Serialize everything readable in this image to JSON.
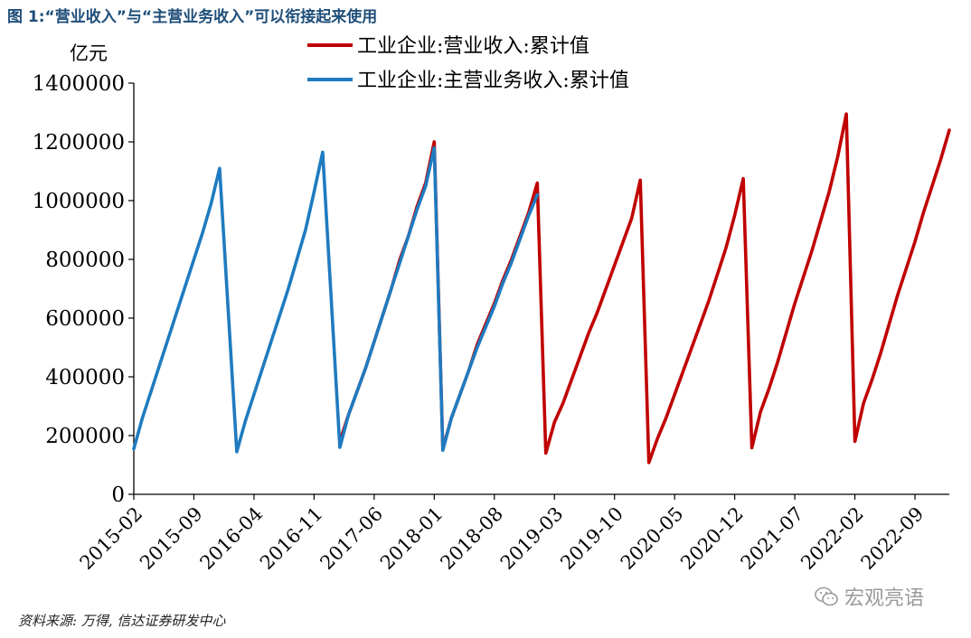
{
  "figure": {
    "title": "图 1:“营业收入”与“主营业务收入”可以衔接起来使用",
    "source": "资料来源: 万得, 信达证券研发中心",
    "watermark": "宏观亮语"
  },
  "colors": {
    "red": "#c00000",
    "blue": "#1f7bc0",
    "title": "#1f4e79"
  },
  "chart_data": {
    "type": "line",
    "title": "",
    "xlabel": "",
    "ylabel": "亿元",
    "ylim": [
      0,
      1400000
    ],
    "yticks": [
      0,
      200000,
      400000,
      600000,
      800000,
      1000000,
      1200000,
      1400000
    ],
    "ytick_labels": [
      "0",
      "200000",
      "400000",
      "600000",
      "800000",
      "1000000",
      "1200000",
      "1400000"
    ],
    "xlim": [
      "2015-02",
      "2023-01"
    ],
    "xticks": [
      "2015-02",
      "2015-09",
      "2016-04",
      "2016-11",
      "2017-06",
      "2018-01",
      "2018-08",
      "2019-03",
      "2019-10",
      "2020-05",
      "2020-12",
      "2021-07",
      "2022-02",
      "2022-09"
    ],
    "legend": {
      "placement": "top"
    },
    "grid": false,
    "series": [
      {
        "name": "工业企业:营业收入:累计值",
        "color": "#c00000",
        "points": [
          [
            "2017-02",
            180000
          ],
          [
            "2017-03",
            270000
          ],
          [
            "2017-04",
            350000
          ],
          [
            "2017-05",
            430000
          ],
          [
            "2017-06",
            520000
          ],
          [
            "2017-07",
            610000
          ],
          [
            "2017-08",
            700000
          ],
          [
            "2017-09",
            800000
          ],
          [
            "2017-10",
            880000
          ],
          [
            "2017-11",
            980000
          ],
          [
            "2017-12",
            1060000
          ],
          [
            "2018-01",
            1200000
          ],
          [
            "2018-02",
            155000
          ],
          [
            "2018-03",
            260000
          ],
          [
            "2018-04",
            340000
          ],
          [
            "2018-05",
            420000
          ],
          [
            "2018-06",
            510000
          ],
          [
            "2018-07",
            580000
          ],
          [
            "2018-08",
            650000
          ],
          [
            "2018-09",
            730000
          ],
          [
            "2018-10",
            800000
          ],
          [
            "2018-11",
            880000
          ],
          [
            "2018-12",
            960000
          ],
          [
            "2019-01",
            1060000
          ],
          [
            "2019-02",
            140000
          ],
          [
            "2019-03",
            245000
          ],
          [
            "2019-04",
            310000
          ],
          [
            "2019-05",
            390000
          ],
          [
            "2019-06",
            470000
          ],
          [
            "2019-07",
            550000
          ],
          [
            "2019-08",
            620000
          ],
          [
            "2019-09",
            700000
          ],
          [
            "2019-10",
            780000
          ],
          [
            "2019-11",
            860000
          ],
          [
            "2019-12",
            940000
          ],
          [
            "2020-01",
            1070000
          ],
          [
            "2020-02",
            108000
          ],
          [
            "2020-03",
            190000
          ],
          [
            "2020-04",
            260000
          ],
          [
            "2020-05",
            340000
          ],
          [
            "2020-06",
            420000
          ],
          [
            "2020-07",
            500000
          ],
          [
            "2020-08",
            580000
          ],
          [
            "2020-09",
            660000
          ],
          [
            "2020-10",
            750000
          ],
          [
            "2020-11",
            840000
          ],
          [
            "2020-12",
            950000
          ],
          [
            "2021-01",
            1075000
          ],
          [
            "2021-02",
            158000
          ],
          [
            "2021-03",
            280000
          ],
          [
            "2021-04",
            360000
          ],
          [
            "2021-05",
            450000
          ],
          [
            "2021-06",
            550000
          ],
          [
            "2021-07",
            650000
          ],
          [
            "2021-08",
            740000
          ],
          [
            "2021-09",
            830000
          ],
          [
            "2021-10",
            930000
          ],
          [
            "2021-11",
            1030000
          ],
          [
            "2021-12",
            1150000
          ],
          [
            "2022-01",
            1295000
          ],
          [
            "2022-02",
            180000
          ],
          [
            "2022-03",
            310000
          ],
          [
            "2022-04",
            390000
          ],
          [
            "2022-05",
            480000
          ],
          [
            "2022-06",
            580000
          ],
          [
            "2022-07",
            680000
          ],
          [
            "2022-08",
            770000
          ],
          [
            "2022-09",
            860000
          ],
          [
            "2022-10",
            960000
          ],
          [
            "2022-11",
            1050000
          ],
          [
            "2022-12",
            1140000
          ],
          [
            "2023-01",
            1240000
          ]
        ]
      },
      {
        "name": "工业企业:主营业务收入:累计值",
        "color": "#1f7bc0",
        "points": [
          [
            "2015-02",
            155000
          ],
          [
            "2015-03",
            260000
          ],
          [
            "2015-04",
            350000
          ],
          [
            "2015-05",
            440000
          ],
          [
            "2015-06",
            530000
          ],
          [
            "2015-07",
            620000
          ],
          [
            "2015-08",
            710000
          ],
          [
            "2015-09",
            800000
          ],
          [
            "2015-10",
            890000
          ],
          [
            "2015-11",
            990000
          ],
          [
            "2015-12",
            1110000
          ],
          [
            "2016-02",
            145000
          ],
          [
            "2016-03",
            250000
          ],
          [
            "2016-04",
            340000
          ],
          [
            "2016-05",
            430000
          ],
          [
            "2016-06",
            520000
          ],
          [
            "2016-07",
            610000
          ],
          [
            "2016-08",
            700000
          ],
          [
            "2016-09",
            800000
          ],
          [
            "2016-10",
            900000
          ],
          [
            "2016-11",
            1030000
          ],
          [
            "2016-12",
            1165000
          ],
          [
            "2017-02",
            160000
          ],
          [
            "2017-03",
            270000
          ],
          [
            "2017-04",
            350000
          ],
          [
            "2017-05",
            430000
          ],
          [
            "2017-06",
            520000
          ],
          [
            "2017-07",
            610000
          ],
          [
            "2017-08",
            700000
          ],
          [
            "2017-09",
            790000
          ],
          [
            "2017-10",
            880000
          ],
          [
            "2017-11",
            970000
          ],
          [
            "2017-12",
            1050000
          ],
          [
            "2018-01",
            1180000
          ],
          [
            "2018-02",
            150000
          ],
          [
            "2018-03",
            260000
          ],
          [
            "2018-04",
            340000
          ],
          [
            "2018-05",
            420000
          ],
          [
            "2018-06",
            500000
          ],
          [
            "2018-07",
            570000
          ],
          [
            "2018-08",
            640000
          ],
          [
            "2018-09",
            720000
          ],
          [
            "2018-10",
            790000
          ],
          [
            "2018-11",
            870000
          ],
          [
            "2018-12",
            950000
          ],
          [
            "2019-01",
            1020000
          ]
        ]
      }
    ]
  }
}
